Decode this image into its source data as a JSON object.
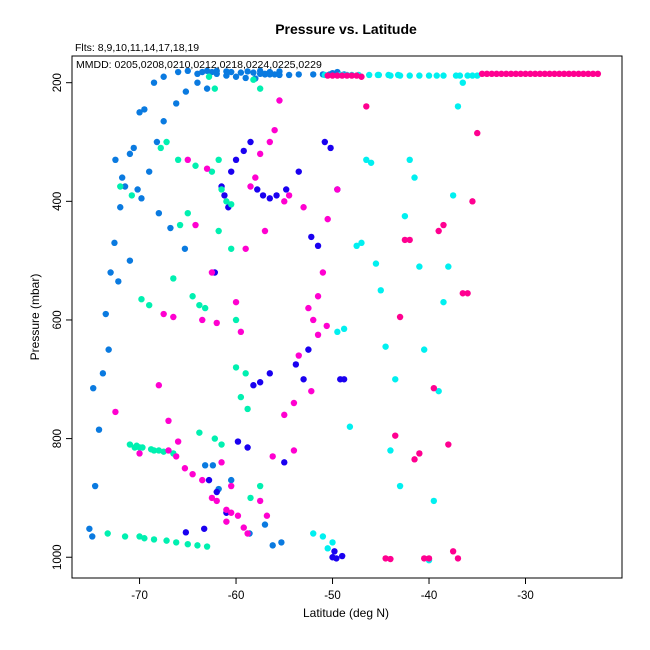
{
  "chart_data": {
    "type": "scatter",
    "title": "Pressure vs. Latitude",
    "subtitle": "Flts: 8,9,10,11,14,17,18,19",
    "legend_text": "MMDD: 0205,0208,0210,0212,0218,0224,0225,0229",
    "legend_position": "top-left",
    "xlabel": "Latitude (deg N)",
    "ylabel": "Pressure (mbar)",
    "xlim": [
      -77,
      -20
    ],
    "ylim": [
      1035,
      155
    ],
    "y_reversed": true,
    "grid": false,
    "x_ticks": [
      -70,
      -60,
      -50,
      -40,
      -30
    ],
    "y_ticks": [
      200,
      400,
      600,
      800,
      1000
    ],
    "series": [
      {
        "color": "#0a7ae0",
        "x": [
          -75.2,
          -74.9,
          -74.6,
          -74.2,
          -73.8,
          -73.5,
          -73.0,
          -72.6,
          -72.0,
          -71.5,
          -71.0,
          -70.6,
          -70.0,
          -69.5,
          -68.5,
          -67.5,
          -66.0,
          -65.0,
          -64.0,
          -63.5,
          -63.0,
          -62.5,
          -62.0,
          -61.0,
          -60.5,
          -59.5,
          -58.8,
          -58.2,
          -57.5,
          -57.0,
          -56.5,
          -55.5,
          -50.0,
          -49.5,
          -74.8,
          -73.2,
          -72.2,
          -71.0,
          -70.2,
          -69.0,
          -68.2,
          -67.5,
          -66.2,
          -65.2,
          -64.0,
          -63.0,
          -62.0,
          -61.0,
          -60.0,
          -59.0,
          -58.0,
          -57.5,
          -57.0,
          -56.5,
          -56.0,
          -55.5,
          -54.5,
          -53.5,
          -52.0,
          -51.0,
          -50.3,
          -49.5,
          -48.8,
          -63.2,
          -62.4,
          -61.8,
          -60.5,
          -58.6,
          -57.0,
          -56.2,
          -55.3,
          -72.5,
          -71.8,
          -69.8,
          -68.0,
          -66.8,
          -65.3
        ],
        "y": [
          952,
          965,
          880,
          785,
          690,
          590,
          520,
          470,
          410,
          375,
          320,
          310,
          250,
          245,
          200,
          190,
          182,
          180,
          185,
          182,
          180,
          182,
          180,
          181,
          182,
          183,
          181,
          183,
          180,
          185,
          182,
          181,
          184,
          182,
          715,
          650,
          535,
          500,
          380,
          350,
          300,
          265,
          235,
          215,
          200,
          210,
          185,
          188,
          190,
          192,
          193,
          185,
          186,
          186,
          186,
          187,
          187,
          186,
          186,
          186,
          186,
          186,
          186,
          845,
          845,
          885,
          870,
          960,
          945,
          980,
          975,
          330,
          360,
          395,
          420,
          445,
          480
        ]
      },
      {
        "color": "#1a00f0",
        "x": [
          -65.2,
          -63.3,
          -62.8,
          -62.2,
          -61.5,
          -61.2,
          -60.8,
          -60.5,
          -60.0,
          -59.2,
          -58.5,
          -57.8,
          -57.2,
          -56.5,
          -55.8,
          -54.8,
          -53.5,
          -53.0,
          -52.2,
          -51.5,
          -50.8,
          -50.2,
          -49.5,
          -49.2,
          -49.8,
          -49.0,
          -50.0,
          -49.6,
          -48.8,
          -61.0,
          -62.0,
          -59.8,
          -58.8,
          -57.5,
          -58.2,
          -56.5,
          -55.0,
          -53.8,
          -52.5
        ],
        "y": [
          958,
          952,
          870,
          520,
          375,
          390,
          410,
          350,
          330,
          315,
          300,
          380,
          390,
          395,
          390,
          380,
          350,
          700,
          460,
          475,
          300,
          310,
          380,
          700,
          990,
          998,
          1000,
          1002,
          700,
          925,
          890,
          805,
          815,
          705,
          710,
          690,
          840,
          675,
          650
        ]
      },
      {
        "color": "#00f0b0",
        "x": [
          -73.3,
          -71.5,
          -70.5,
          -70.0,
          -69.8,
          -69.0,
          -68.5,
          -67.8,
          -67.2,
          -66.5,
          -65.8,
          -65.0,
          -64.5,
          -63.8,
          -63.2,
          -62.8,
          -62.2,
          -61.8,
          -61.5,
          -61.0,
          -60.5,
          -60.0,
          -59.5,
          -58.8,
          -58.2,
          -57.5,
          -70.0,
          -69.5,
          -68.5,
          -67.2,
          -66.2,
          -65.0,
          -64.0,
          -63.0,
          -71.0,
          -70.3,
          -69.7,
          -68.8,
          -68.0,
          -67.5,
          -66.5,
          -63.8,
          -62.2,
          -61.5,
          -60.0,
          -59.0,
          -72.0,
          -70.8,
          -66.0,
          -64.2,
          -62.5,
          -61.8,
          -60.5,
          -58.5,
          -57.5
        ],
        "y": [
          960,
          965,
          815,
          815,
          565,
          575,
          820,
          310,
          300,
          530,
          440,
          420,
          560,
          575,
          580,
          190,
          210,
          330,
          380,
          400,
          405,
          600,
          730,
          750,
          195,
          210,
          965,
          968,
          970,
          972,
          975,
          978,
          980,
          982,
          810,
          812,
          815,
          818,
          820,
          822,
          825,
          790,
          800,
          810,
          680,
          690,
          375,
          390,
          330,
          340,
          350,
          450,
          480,
          900,
          880
        ]
      },
      {
        "color": "#00f0f0",
        "x": [
          -52.0,
          -51.0,
          -50.5,
          -50.0,
          -49.5,
          -48.8,
          -48.2,
          -47.5,
          -47.0,
          -46.5,
          -46.0,
          -45.5,
          -45.0,
          -44.5,
          -44.0,
          -43.5,
          -43.0,
          -42.5,
          -42.0,
          -41.5,
          -41.0,
          -40.5,
          -40.0,
          -39.5,
          -39.0,
          -38.5,
          -38.0,
          -37.5,
          -37.0,
          -36.5,
          -36.0,
          -35.5,
          -35.0,
          -43.2,
          -44.2,
          -45.3,
          -46.2,
          -47.3,
          -48.0,
          -49.0,
          -50.8,
          -49.2,
          -48.5,
          -45.2,
          -44.0,
          -43.0,
          -42.0,
          -41.0,
          -40.0,
          -39.2,
          -38.5,
          -37.2,
          -36.8
        ],
        "y": [
          960,
          965,
          985,
          975,
          620,
          615,
          780,
          475,
          470,
          330,
          335,
          505,
          550,
          645,
          820,
          700,
          880,
          425,
          330,
          360,
          510,
          650,
          1005,
          905,
          720,
          570,
          510,
          390,
          240,
          200,
          188,
          188,
          188,
          187,
          187,
          187,
          187,
          187,
          187,
          187,
          187,
          187,
          187,
          187,
          188,
          188,
          188,
          188,
          188,
          188,
          188,
          188,
          188
        ]
      },
      {
        "color": "#ff00d0",
        "x": [
          -72.5,
          -70.0,
          -68.0,
          -67.5,
          -67.0,
          -66.5,
          -66.0,
          -65.0,
          -64.2,
          -63.5,
          -63.0,
          -62.5,
          -62.0,
          -61.5,
          -61.0,
          -60.5,
          -60.0,
          -59.5,
          -59.0,
          -58.5,
          -58.0,
          -57.5,
          -57.0,
          -56.5,
          -56.0,
          -55.5,
          -55.0,
          -54.5,
          -54.0,
          -53.5,
          -53.0,
          -52.5,
          -52.0,
          -51.5,
          -51.0,
          -50.5,
          -49.5,
          -67.0,
          -66.2,
          -65.3,
          -64.5,
          -63.5,
          -62.5,
          -62.0,
          -61.0,
          -60.5,
          -59.8,
          -59.2,
          -58.8,
          -57.5,
          -56.8,
          -56.2,
          -55.0,
          -54.0,
          -52.2,
          -51.5,
          -50.6
        ],
        "y": [
          755,
          825,
          710,
          590,
          770,
          595,
          805,
          330,
          440,
          600,
          345,
          520,
          605,
          840,
          940,
          880,
          570,
          620,
          480,
          375,
          360,
          320,
          450,
          300,
          280,
          230,
          400,
          390,
          820,
          660,
          410,
          580,
          600,
          560,
          520,
          430,
          380,
          820,
          830,
          850,
          860,
          870,
          900,
          905,
          920,
          925,
          930,
          950,
          960,
          905,
          930,
          830,
          760,
          740,
          720,
          625,
          610
        ]
      },
      {
        "color": "#ff0090",
        "x": [
          -50.5,
          -50.0,
          -49.5,
          -49.0,
          -48.5,
          -48.0,
          -47.5,
          -47.0,
          -46.5,
          -44.5,
          -44.0,
          -43.5,
          -43.0,
          -42.5,
          -42.0,
          -41.5,
          -41.0,
          -40.5,
          -40.0,
          -39.5,
          -39.0,
          -38.5,
          -38.0,
          -37.5,
          -37.0,
          -36.5,
          -36.0,
          -35.5,
          -35.0,
          -34.5,
          -34.0,
          -33.5,
          -33.0,
          -32.5,
          -32.0,
          -31.5,
          -31.0,
          -30.5,
          -30.0,
          -29.5,
          -29.0,
          -28.5,
          -28.0,
          -27.5,
          -27.0,
          -26.5,
          -26.0,
          -25.5,
          -25.0,
          -24.5,
          -24.0,
          -23.5,
          -23.0,
          -22.5
        ],
        "y": [
          188,
          188,
          188,
          188,
          188,
          188,
          188,
          190,
          240,
          1002,
          1003,
          795,
          595,
          465,
          465,
          835,
          825,
          1002,
          1002,
          715,
          450,
          440,
          810,
          990,
          1002,
          555,
          555,
          400,
          285,
          185,
          185,
          185,
          185,
          185,
          185,
          185,
          185,
          185,
          185,
          185,
          185,
          185,
          185,
          185,
          185,
          185,
          185,
          185,
          185,
          185,
          185,
          185,
          185,
          185
        ]
      }
    ]
  }
}
